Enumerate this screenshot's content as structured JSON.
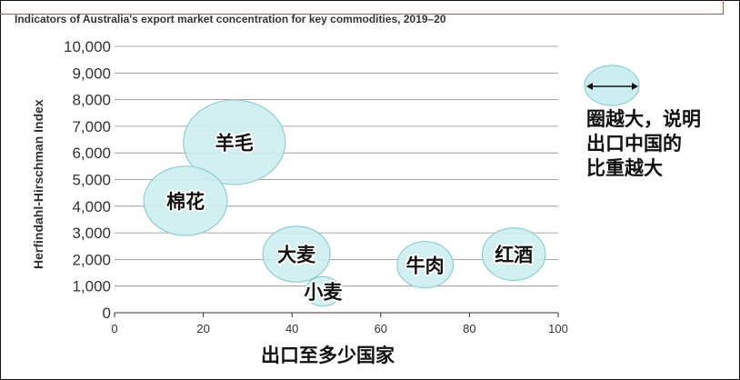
{
  "chart_data": {
    "type": "scatter",
    "title": "Indicators of Australia's export market concentration for key commodities, 2019–20",
    "xlabel": "出口至多少国家",
    "ylabel": "Herfindahl-Hirschman Index",
    "xlim": [
      0,
      100
    ],
    "ylim": [
      0,
      10000
    ],
    "x_ticks": [
      "0",
      "20",
      "40",
      "60",
      "80",
      "100"
    ],
    "y_ticks": [
      "0",
      "1,000",
      "2,000",
      "3,000",
      "4,000",
      "5,000",
      "6,000",
      "7,000",
      "8,000",
      "9,000",
      "10,000"
    ],
    "grid": true,
    "points": [
      {
        "label": "羊毛",
        "x": 27,
        "y": 6400,
        "size": 1.0
      },
      {
        "label": "棉花",
        "x": 16,
        "y": 4200,
        "size": 0.82
      },
      {
        "label": "大麦",
        "x": 41,
        "y": 2200,
        "size": 0.66
      },
      {
        "label": "小麦",
        "x": 47,
        "y": 800,
        "size": 0.35
      },
      {
        "label": "牛肉",
        "x": 70,
        "y": 1800,
        "size": 0.55
      },
      {
        "label": "红酒",
        "x": 90,
        "y": 2200,
        "size": 0.62
      }
    ],
    "legend_note": [
      "圈越大，说明",
      "出口中国的",
      "比重越大"
    ]
  },
  "colors": {
    "bubble_fill": "#cdeef0",
    "bubble_stroke": "#8fcdd3",
    "grid": "#8c8c8c",
    "axis": "#333333"
  }
}
